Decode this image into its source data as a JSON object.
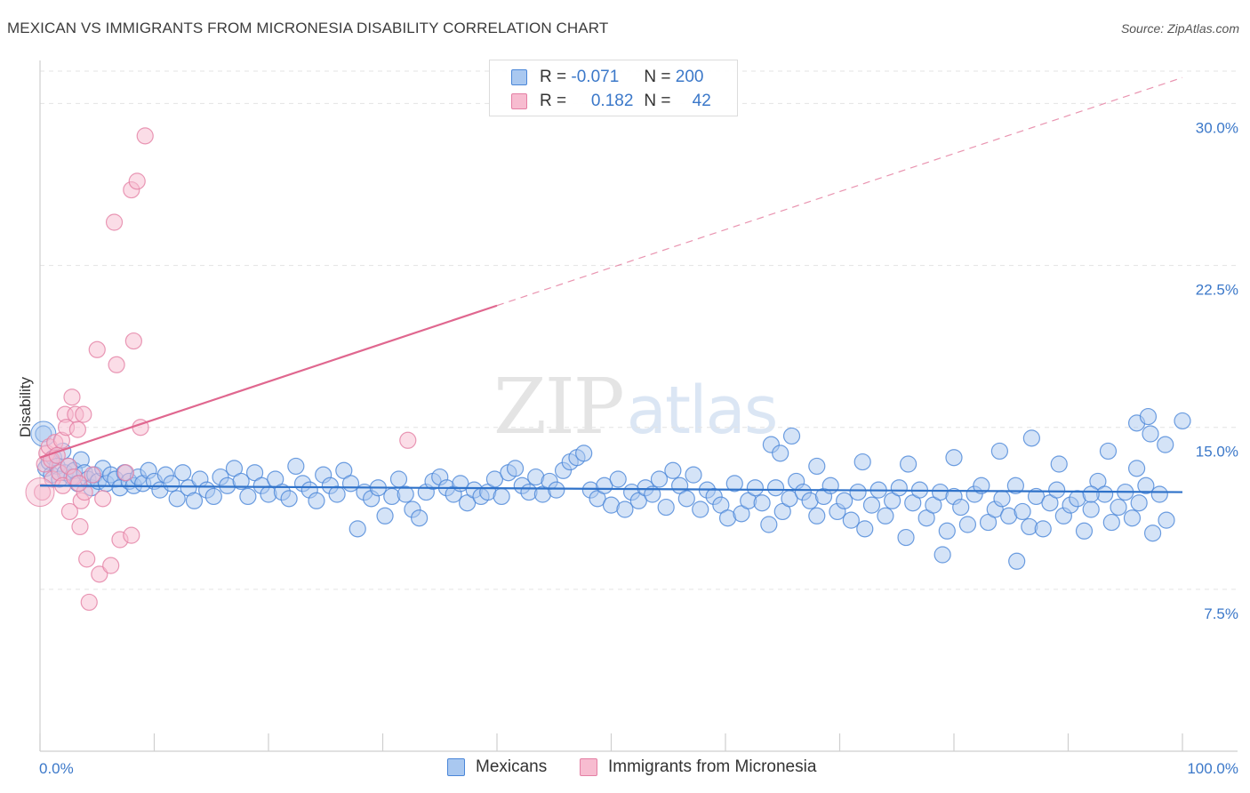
{
  "title": "MEXICAN VS IMMIGRANTS FROM MICRONESIA DISABILITY CORRELATION CHART",
  "source": "Source: ZipAtlas.com",
  "watermark": {
    "zip": "ZIP",
    "atlas": "atlas"
  },
  "colors": {
    "blue_fill": "#a9c8f0",
    "blue_stroke": "#4a86d8",
    "blue_line": "#2f72c9",
    "pink_fill": "#f7bcd0",
    "pink_stroke": "#e47fa4",
    "pink_line": "#e0678f",
    "tick_text": "#3b78c9",
    "grid": "#e3e3e3"
  },
  "legend": {
    "r_label": "R =",
    "n_label": "N =",
    "rows": [
      {
        "name": "Mexicans",
        "r": "-0.071",
        "n": "200"
      },
      {
        "name": "Immigrants from Micronesia",
        "r": "0.182",
        "n": "42"
      }
    ]
  },
  "chart_data": {
    "type": "scatter",
    "title": "MEXICAN VS IMMIGRANTS FROM MICRONESIA DISABILITY CORRELATION CHART",
    "xlabel": "",
    "ylabel": "Disability",
    "xlim": [
      0,
      100
    ],
    "ylim": [
      0,
      31.5
    ],
    "x_tick_labels": [
      "0.0%",
      "100.0%"
    ],
    "y_ticks": [
      7.5,
      15.0,
      22.5,
      30.0
    ],
    "y_tick_labels": [
      "7.5%",
      "15.0%",
      "22.5%",
      "30.0%"
    ],
    "grid": true,
    "legend_position": "top-center",
    "series": [
      {
        "name": "Mexicans",
        "r": -0.071,
        "n": 200,
        "trend": {
          "x": [
            0,
            100
          ],
          "y": [
            12.3,
            12.0
          ],
          "solid_to": 100
        },
        "points": [
          [
            0.3,
            14.7
          ],
          [
            0.5,
            13.1
          ],
          [
            0.8,
            13.4
          ],
          [
            1.0,
            12.8
          ],
          [
            1.2,
            13.6
          ],
          [
            1.5,
            13.2
          ],
          [
            1.7,
            12.6
          ],
          [
            2.0,
            13.9
          ],
          [
            2.2,
            12.9
          ],
          [
            2.5,
            13.2
          ],
          [
            2.8,
            12.7
          ],
          [
            3.0,
            13.0
          ],
          [
            3.3,
            12.4
          ],
          [
            3.6,
            13.5
          ],
          [
            3.9,
            12.9
          ],
          [
            4.2,
            12.6
          ],
          [
            4.5,
            12.2
          ],
          [
            4.8,
            12.8
          ],
          [
            5.1,
            12.5
          ],
          [
            5.5,
            13.1
          ],
          [
            5.8,
            12.4
          ],
          [
            6.2,
            12.8
          ],
          [
            6.6,
            12.6
          ],
          [
            7.0,
            12.2
          ],
          [
            7.4,
            12.9
          ],
          [
            7.8,
            12.5
          ],
          [
            8.2,
            12.3
          ],
          [
            8.6,
            12.7
          ],
          [
            9.0,
            12.4
          ],
          [
            9.5,
            13.0
          ],
          [
            10.0,
            12.5
          ],
          [
            10.5,
            12.1
          ],
          [
            11.0,
            12.8
          ],
          [
            11.5,
            12.4
          ],
          [
            12.0,
            11.7
          ],
          [
            12.5,
            12.9
          ],
          [
            13.0,
            12.2
          ],
          [
            13.5,
            11.6
          ],
          [
            14.0,
            12.6
          ],
          [
            14.6,
            12.1
          ],
          [
            15.2,
            11.8
          ],
          [
            15.8,
            12.7
          ],
          [
            16.4,
            12.3
          ],
          [
            17.0,
            13.1
          ],
          [
            17.6,
            12.5
          ],
          [
            18.2,
            11.8
          ],
          [
            18.8,
            12.9
          ],
          [
            19.4,
            12.3
          ],
          [
            20.0,
            11.9
          ],
          [
            20.6,
            12.6
          ],
          [
            21.2,
            12.0
          ],
          [
            21.8,
            11.7
          ],
          [
            22.4,
            13.2
          ],
          [
            23.0,
            12.4
          ],
          [
            23.6,
            12.1
          ],
          [
            24.2,
            11.6
          ],
          [
            24.8,
            12.8
          ],
          [
            25.4,
            12.3
          ],
          [
            26.0,
            11.9
          ],
          [
            26.6,
            13.0
          ],
          [
            27.2,
            12.4
          ],
          [
            27.8,
            10.3
          ],
          [
            28.4,
            12.0
          ],
          [
            29.0,
            11.7
          ],
          [
            29.6,
            12.2
          ],
          [
            30.2,
            10.9
          ],
          [
            30.8,
            11.8
          ],
          [
            31.4,
            12.6
          ],
          [
            32.0,
            11.9
          ],
          [
            32.6,
            11.2
          ],
          [
            33.2,
            10.8
          ],
          [
            33.8,
            12.0
          ],
          [
            34.4,
            12.5
          ],
          [
            35.0,
            12.7
          ],
          [
            35.6,
            12.2
          ],
          [
            36.2,
            11.9
          ],
          [
            36.8,
            12.4
          ],
          [
            37.4,
            11.5
          ],
          [
            38.0,
            12.1
          ],
          [
            38.6,
            11.8
          ],
          [
            39.2,
            12.0
          ],
          [
            39.8,
            12.6
          ],
          [
            40.4,
            11.8
          ],
          [
            41.0,
            12.9
          ],
          [
            41.6,
            13.1
          ],
          [
            42.2,
            12.3
          ],
          [
            42.8,
            12.0
          ],
          [
            43.4,
            12.7
          ],
          [
            44.0,
            11.9
          ],
          [
            44.6,
            12.5
          ],
          [
            45.2,
            12.1
          ],
          [
            45.8,
            13.0
          ],
          [
            46.4,
            13.4
          ],
          [
            47.0,
            13.6
          ],
          [
            47.6,
            13.8
          ],
          [
            48.2,
            12.1
          ],
          [
            48.8,
            11.7
          ],
          [
            49.4,
            12.3
          ],
          [
            50.0,
            11.4
          ],
          [
            50.6,
            12.6
          ],
          [
            51.2,
            11.2
          ],
          [
            51.8,
            12.0
          ],
          [
            52.4,
            11.6
          ],
          [
            53.0,
            12.2
          ],
          [
            53.6,
            11.9
          ],
          [
            54.2,
            12.6
          ],
          [
            54.8,
            11.3
          ],
          [
            55.4,
            13.0
          ],
          [
            56.0,
            12.3
          ],
          [
            56.6,
            11.7
          ],
          [
            57.2,
            12.8
          ],
          [
            57.8,
            11.2
          ],
          [
            58.4,
            12.1
          ],
          [
            59.0,
            11.8
          ],
          [
            59.6,
            11.4
          ],
          [
            60.2,
            10.8
          ],
          [
            60.8,
            12.4
          ],
          [
            61.4,
            11.0
          ],
          [
            62.0,
            11.6
          ],
          [
            62.6,
            12.2
          ],
          [
            63.2,
            11.5
          ],
          [
            63.8,
            10.5
          ],
          [
            64.4,
            12.2
          ],
          [
            65.0,
            11.1
          ],
          [
            65.6,
            11.7
          ],
          [
            66.2,
            12.5
          ],
          [
            66.8,
            12.0
          ],
          [
            67.4,
            11.6
          ],
          [
            68.0,
            10.9
          ],
          [
            68.6,
            11.8
          ],
          [
            69.2,
            12.3
          ],
          [
            69.8,
            11.1
          ],
          [
            70.4,
            11.6
          ],
          [
            71.0,
            10.7
          ],
          [
            71.6,
            12.0
          ],
          [
            72.2,
            10.3
          ],
          [
            72.8,
            11.4
          ],
          [
            73.4,
            12.1
          ],
          [
            74.0,
            10.9
          ],
          [
            74.6,
            11.6
          ],
          [
            75.2,
            12.2
          ],
          [
            75.8,
            9.9
          ],
          [
            76.4,
            11.5
          ],
          [
            77.0,
            12.1
          ],
          [
            77.6,
            10.8
          ],
          [
            78.2,
            11.4
          ],
          [
            78.8,
            12.0
          ],
          [
            79.4,
            10.2
          ],
          [
            80.0,
            11.8
          ],
          [
            80.6,
            11.3
          ],
          [
            81.2,
            10.5
          ],
          [
            81.8,
            11.9
          ],
          [
            82.4,
            12.3
          ],
          [
            83.0,
            10.6
          ],
          [
            83.6,
            11.2
          ],
          [
            84.2,
            11.7
          ],
          [
            84.8,
            10.9
          ],
          [
            85.4,
            12.3
          ],
          [
            86.0,
            11.1
          ],
          [
            86.6,
            10.4
          ],
          [
            87.2,
            11.8
          ],
          [
            87.8,
            10.3
          ],
          [
            88.4,
            11.5
          ],
          [
            89.0,
            12.1
          ],
          [
            89.6,
            10.9
          ],
          [
            90.2,
            11.4
          ],
          [
            90.8,
            11.7
          ],
          [
            91.4,
            10.2
          ],
          [
            92.0,
            11.2
          ],
          [
            92.6,
            12.5
          ],
          [
            93.2,
            11.9
          ],
          [
            93.8,
            10.6
          ],
          [
            94.4,
            11.3
          ],
          [
            95.0,
            12.0
          ],
          [
            95.6,
            10.8
          ],
          [
            96.2,
            11.5
          ],
          [
            96.8,
            12.3
          ],
          [
            97.4,
            10.1
          ],
          [
            98.0,
            11.9
          ],
          [
            98.6,
            10.7
          ],
          [
            64.0,
            14.2
          ],
          [
            64.8,
            13.8
          ],
          [
            65.8,
            14.6
          ],
          [
            68.0,
            13.2
          ],
          [
            72.0,
            13.4
          ],
          [
            76.0,
            13.3
          ],
          [
            80.0,
            13.6
          ],
          [
            84.0,
            13.9
          ],
          [
            86.8,
            14.5
          ],
          [
            89.2,
            13.3
          ],
          [
            93.5,
            13.9
          ],
          [
            96.0,
            15.2
          ],
          [
            97.2,
            14.7
          ],
          [
            98.5,
            14.2
          ],
          [
            100.0,
            15.3
          ],
          [
            97.0,
            15.5
          ],
          [
            96.0,
            13.1
          ],
          [
            92.0,
            11.9
          ],
          [
            79.0,
            9.1
          ],
          [
            85.5,
            8.8
          ]
        ]
      },
      {
        "name": "Immigrants from Micronesia",
        "r": 0.182,
        "n": 42,
        "trend": {
          "x": [
            0,
            100
          ],
          "y": [
            13.6,
            31.2
          ],
          "solid_to": 40
        },
        "points": [
          [
            0.2,
            12.0
          ],
          [
            0.4,
            13.3
          ],
          [
            0.6,
            13.8
          ],
          [
            0.8,
            14.1
          ],
          [
            1.0,
            13.5
          ],
          [
            1.1,
            12.6
          ],
          [
            1.3,
            14.3
          ],
          [
            1.5,
            13.7
          ],
          [
            1.7,
            12.9
          ],
          [
            1.9,
            14.4
          ],
          [
            2.0,
            12.3
          ],
          [
            2.2,
            15.6
          ],
          [
            2.3,
            15.0
          ],
          [
            2.5,
            13.2
          ],
          [
            2.6,
            11.1
          ],
          [
            2.8,
            16.4
          ],
          [
            3.0,
            12.7
          ],
          [
            3.1,
            15.6
          ],
          [
            3.3,
            14.9
          ],
          [
            3.5,
            10.4
          ],
          [
            3.6,
            11.6
          ],
          [
            3.8,
            15.6
          ],
          [
            3.9,
            12.0
          ],
          [
            4.1,
            8.9
          ],
          [
            4.3,
            6.9
          ],
          [
            4.6,
            12.8
          ],
          [
            5.0,
            18.6
          ],
          [
            5.2,
            8.2
          ],
          [
            5.5,
            11.7
          ],
          [
            6.2,
            8.6
          ],
          [
            6.5,
            24.5
          ],
          [
            6.7,
            17.9
          ],
          [
            7.0,
            9.8
          ],
          [
            7.5,
            12.9
          ],
          [
            8.0,
            26.0
          ],
          [
            8.2,
            19.0
          ],
          [
            8.5,
            26.4
          ],
          [
            8.8,
            15.0
          ],
          [
            9.2,
            28.5
          ],
          [
            32.2,
            14.4
          ],
          [
            8.0,
            10.0
          ],
          [
            3.4,
            12.4
          ]
        ]
      }
    ]
  }
}
